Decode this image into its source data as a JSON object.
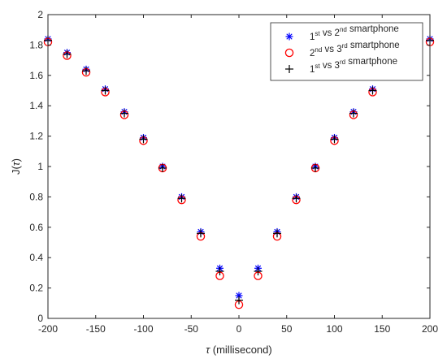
{
  "chart_data": {
    "type": "scatter",
    "xlabel_symbol": "τ",
    "xlabel_text": "(millisecond)",
    "ylabel_prefix": "J(",
    "ylabel_symbol": "τ",
    "ylabel_suffix": ")",
    "xlim": [
      -200,
      200
    ],
    "ylim": [
      0,
      2
    ],
    "xticks": [
      "-200",
      "-150",
      "-100",
      "-50",
      "0",
      "50",
      "100",
      "150",
      "200"
    ],
    "yticks": [
      "0",
      "0.2",
      "0.4",
      "0.6",
      "0.8",
      "1",
      "1.2",
      "1.4",
      "1.6",
      "1.8",
      "2"
    ],
    "grid": false,
    "legend_position": "top-right",
    "x": [
      -200,
      -180,
      -160,
      -140,
      -120,
      -100,
      -80,
      -60,
      -40,
      -20,
      0,
      20,
      40,
      60,
      80,
      100,
      120,
      140,
      160,
      180,
      200
    ],
    "series": [
      {
        "legend": {
          "a": "1",
          "a_sup": "st",
          "mid": " vs 2",
          "b_sup": "nd",
          "tail": " smartphone"
        },
        "marker": "asterisk",
        "color": "#0000ff",
        "values": [
          1.84,
          1.75,
          1.64,
          1.51,
          1.36,
          1.19,
          1.0,
          0.8,
          0.57,
          0.33,
          0.15,
          0.33,
          0.57,
          0.8,
          1.0,
          1.19,
          1.36,
          1.51,
          1.64,
          1.75,
          1.84
        ]
      },
      {
        "legend": {
          "a": "2",
          "a_sup": "nd",
          "mid": " vs 3",
          "b_sup": "rd",
          "tail": " smartphone"
        },
        "marker": "circle",
        "color": "#ff0000",
        "values": [
          1.82,
          1.73,
          1.62,
          1.49,
          1.34,
          1.17,
          0.99,
          0.78,
          0.54,
          0.28,
          0.09,
          0.28,
          0.54,
          0.78,
          0.99,
          1.17,
          1.34,
          1.49,
          1.62,
          1.73,
          1.82
        ]
      },
      {
        "legend": {
          "a": "1",
          "a_sup": "st",
          "mid": " vs 3",
          "b_sup": "rd",
          "tail": " smartphone"
        },
        "marker": "plus",
        "color": "#000000",
        "values": [
          1.83,
          1.74,
          1.63,
          1.5,
          1.35,
          1.18,
          0.99,
          0.79,
          0.56,
          0.31,
          0.12,
          0.31,
          0.56,
          0.79,
          0.99,
          1.18,
          1.35,
          1.5,
          1.63,
          1.74,
          1.83
        ]
      }
    ]
  }
}
